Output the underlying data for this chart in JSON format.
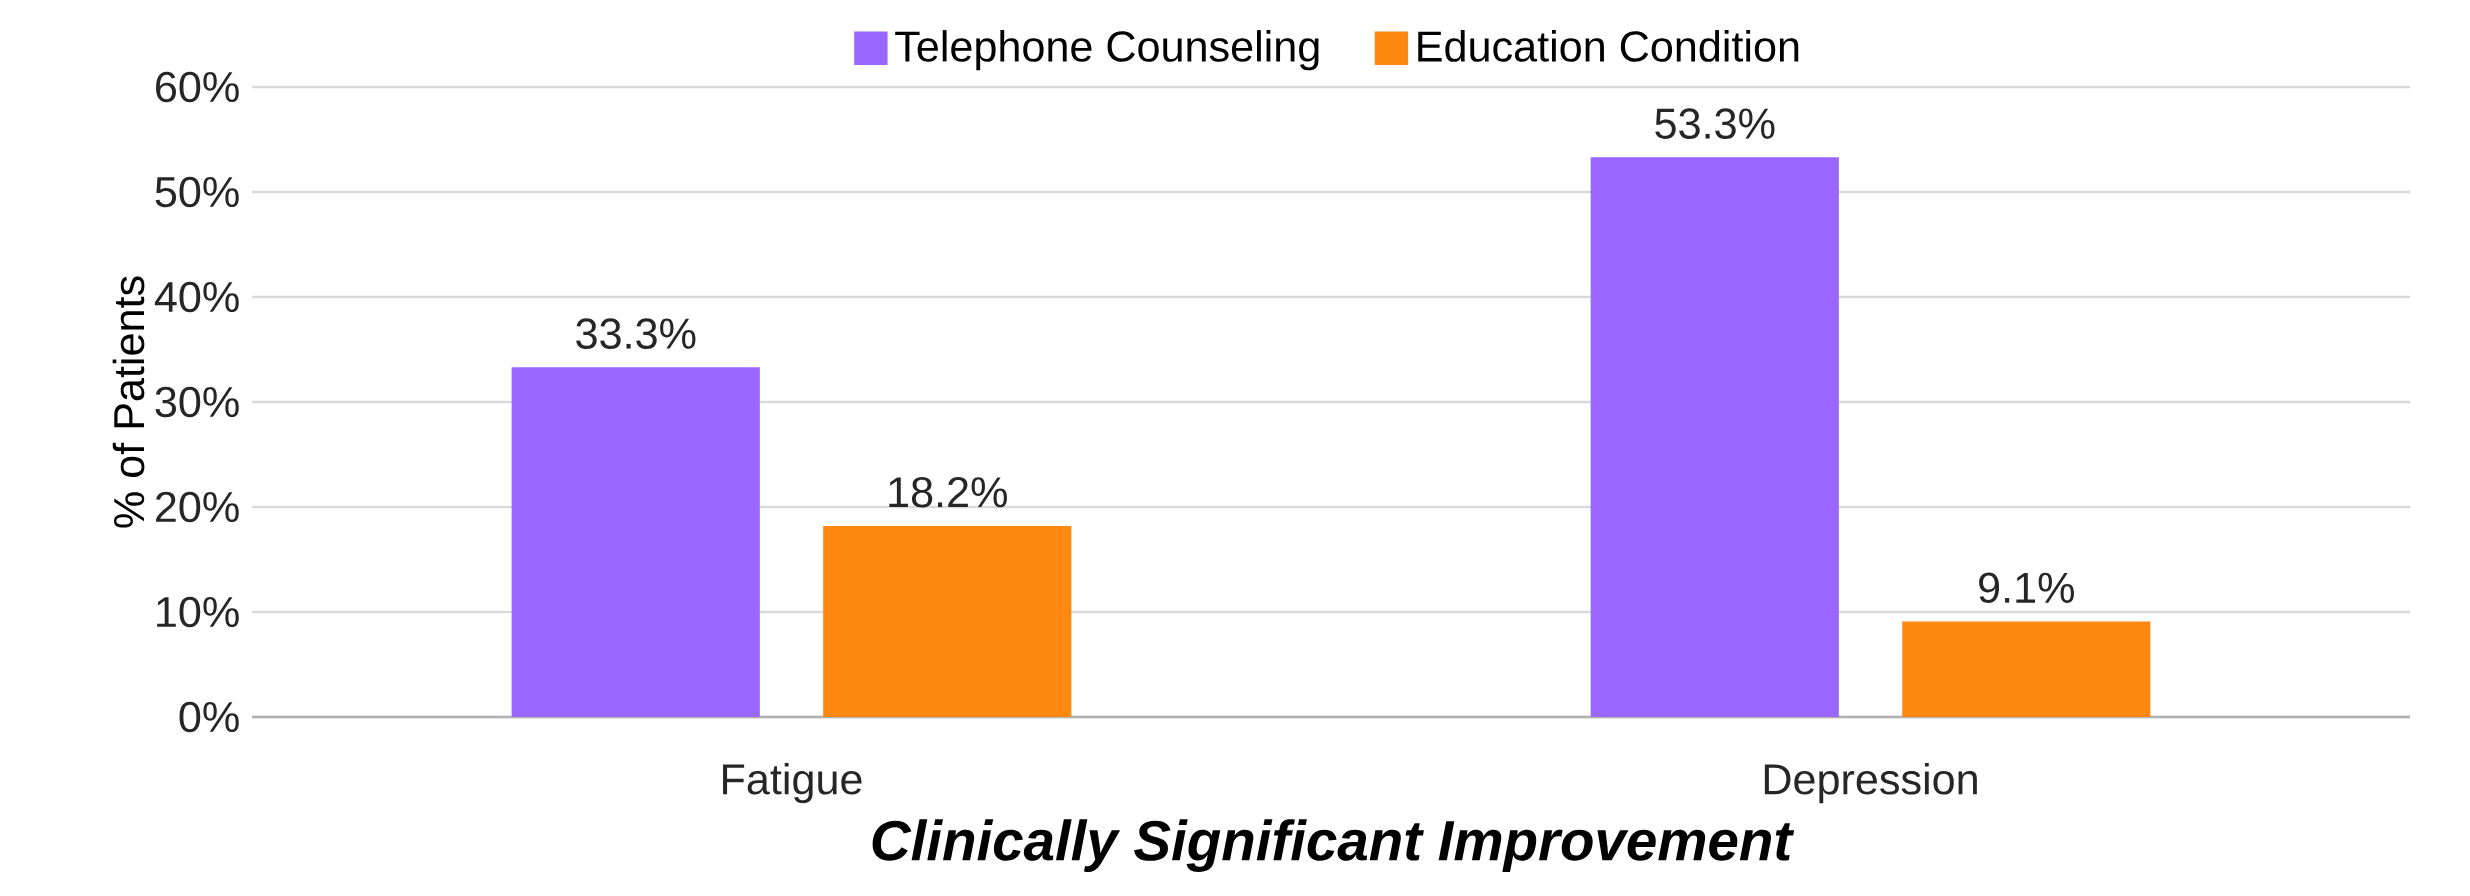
{
  "chart_data": {
    "type": "bar",
    "xlabel": "Clinically Significant Improvement",
    "ylabel": "% of Patients",
    "categories": [
      "Fatigue",
      "Depression"
    ],
    "series": [
      {
        "name": "Telephone Counseling",
        "color": "#9966ff",
        "values": [
          33.3,
          53.3
        ],
        "value_labels": [
          "33.3%",
          "53.3%"
        ]
      },
      {
        "name": "Education Condition",
        "color": "#ff8811",
        "values": [
          18.2,
          9.1
        ],
        "value_labels": [
          "18.2%",
          "9.1%"
        ]
      }
    ],
    "ylim": [
      0,
      60
    ],
    "yticks": [
      {
        "value": 0,
        "label": "0%"
      },
      {
        "value": 10,
        "label": "10%"
      },
      {
        "value": 20,
        "label": "20%"
      },
      {
        "value": 30,
        "label": "30%"
      },
      {
        "value": 40,
        "label": "40%"
      },
      {
        "value": 50,
        "label": "50%"
      },
      {
        "value": 60,
        "label": "60%"
      }
    ],
    "grid": "y",
    "legend": "top"
  }
}
